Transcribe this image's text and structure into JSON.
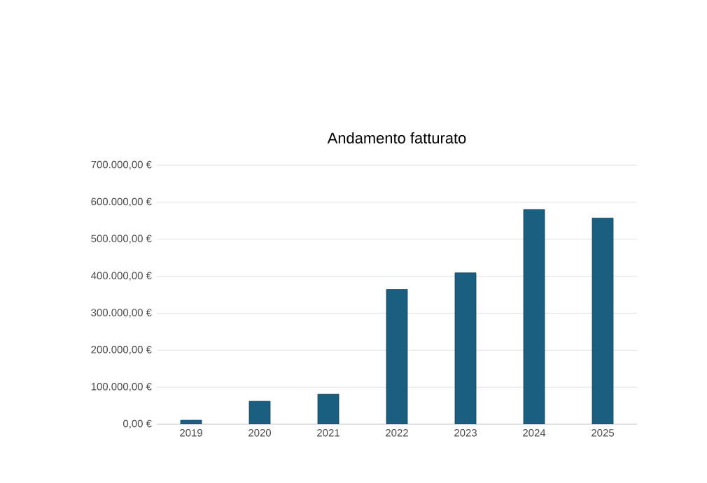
{
  "chart_data": {
    "type": "bar",
    "title": "Andamento fatturato",
    "categories": [
      "2019",
      "2020",
      "2021",
      "2022",
      "2023",
      "2024",
      "2025"
    ],
    "values": [
      11000,
      62000,
      81000,
      364000,
      409000,
      580000,
      557000
    ],
    "color": "#1a5e80",
    "ylim": [
      0,
      700000
    ],
    "yticks": [
      {
        "value": 0,
        "label": "0,00 €"
      },
      {
        "value": 100000,
        "label": "100.000,00 €"
      },
      {
        "value": 200000,
        "label": "200.000,00 €"
      },
      {
        "value": 300000,
        "label": "300.000,00 €"
      },
      {
        "value": 400000,
        "label": "400.000,00 €"
      },
      {
        "value": 500000,
        "label": "500.000,00 €"
      },
      {
        "value": 600000,
        "label": "600.000,00 €"
      },
      {
        "value": 700000,
        "label": "700.000,00 €"
      }
    ],
    "grid": "y"
  }
}
